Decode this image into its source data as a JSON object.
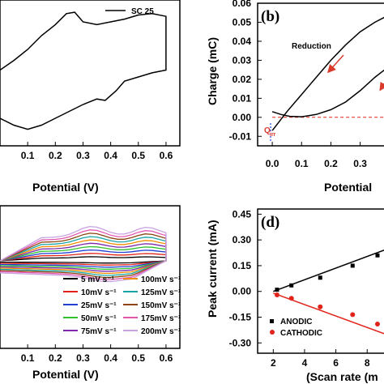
{
  "chart_data": [
    {
      "panel": "a",
      "type": "line",
      "xlabel": "Potential (V)",
      "xticks": [
        "0.1",
        "0.2",
        "0.3",
        "0.4",
        "0.5",
        "0.6"
      ],
      "xlim": [
        0.0,
        0.65
      ],
      "series": [
        {
          "name": "SC 25",
          "x": [
            0.0,
            0.05,
            0.1,
            0.15,
            0.2,
            0.24,
            0.27,
            0.3,
            0.35,
            0.4,
            0.45,
            0.5,
            0.55,
            0.6,
            0.6,
            0.55,
            0.5,
            0.45,
            0.42,
            0.38,
            0.35,
            0.3,
            0.25,
            0.2,
            0.15,
            0.1,
            0.05,
            0.0
          ],
          "y": [
            0.55,
            0.62,
            0.7,
            0.8,
            0.88,
            0.96,
            0.97,
            0.9,
            0.88,
            0.9,
            0.92,
            0.95,
            0.96,
            0.94,
            0.55,
            0.53,
            0.5,
            0.47,
            0.4,
            0.33,
            0.34,
            0.3,
            0.25,
            0.2,
            0.15,
            0.12,
            0.15,
            0.2
          ]
        }
      ]
    },
    {
      "panel": "b",
      "type": "line",
      "label": "(b)",
      "xlabel": "Potential",
      "ylabel": "Charge (mC)",
      "xticks": [
        "0.0",
        "0.1",
        "0.2",
        "0.3"
      ],
      "yticks": [
        "-0.01",
        "0.00",
        "0.01",
        "0.02",
        "0.03",
        "0.04",
        "0.05",
        "0.06"
      ],
      "xlim": [
        -0.05,
        0.42
      ],
      "ylim": [
        -0.015,
        0.06
      ],
      "annotation": "Reduction",
      "marker_text": "Q",
      "marker_sub": "irr",
      "series": [
        {
          "name": "reduction",
          "x": [
            0.0,
            0.05,
            0.1,
            0.15,
            0.2,
            0.25,
            0.3,
            0.35,
            0.4
          ],
          "y": [
            -0.007,
            0.003,
            0.012,
            0.021,
            0.03,
            0.038,
            0.045,
            0.05,
            0.054
          ]
        },
        {
          "name": "oxidation",
          "x": [
            0.0,
            0.03,
            0.06,
            0.1,
            0.15,
            0.2,
            0.25,
            0.3,
            0.35,
            0.4
          ],
          "y": [
            0.003,
            0.0015,
            0.0005,
            0.0003,
            0.0015,
            0.004,
            0.008,
            0.014,
            0.021,
            0.027
          ]
        },
        {
          "name": "baseline",
          "x": [
            0.0,
            0.42
          ],
          "y": [
            0.0,
            0.0
          ]
        }
      ]
    },
    {
      "panel": "c",
      "type": "line",
      "xlabel": "Potential (V)",
      "xticks": [
        "0.1",
        "0.2",
        "0.3",
        "0.4",
        "0.5",
        "0.6"
      ],
      "xlim": [
        0.0,
        0.65
      ],
      "legend_position": "bottom-right",
      "legend": [
        {
          "label": "5 mV s⁻¹",
          "color": "#000000"
        },
        {
          "label": "10mV s⁻¹",
          "color": "#e2231a"
        },
        {
          "label": "25mV s⁻¹",
          "color": "#1f3fd1"
        },
        {
          "label": "50mV s⁻¹",
          "color": "#2fc02f"
        },
        {
          "label": "75mV s⁻¹",
          "color": "#7a2aa8"
        },
        {
          "label": "100mV s⁻¹",
          "color": "#f08c00"
        },
        {
          "label": "125mV s⁻¹",
          "color": "#1aa5a5"
        },
        {
          "label": "150mV s⁻¹",
          "color": "#8b4513"
        },
        {
          "label": "175mV s⁻¹",
          "color": "#e455b0"
        },
        {
          "label": "200mV s⁻¹",
          "color": "#c8a2e0"
        }
      ],
      "scan_rates": [
        5,
        10,
        25,
        50,
        75,
        100,
        125,
        150,
        175,
        200
      ]
    },
    {
      "panel": "d",
      "type": "scatter",
      "label": "(d)",
      "xlabel": "(Scan rate (m",
      "ylabel": "Peak current (mA)",
      "xticks": [
        "2",
        "4",
        "6",
        "8"
      ],
      "yticks": [
        "-0.30",
        "-0.15",
        "0.00",
        "0.15",
        "0.30",
        "0.45"
      ],
      "xlim": [
        1.0,
        9.8
      ],
      "ylim": [
        -0.36,
        0.48
      ],
      "legend_position": "bottom-left",
      "series": [
        {
          "name": "ANODIC",
          "color": "#000000",
          "marker": "square",
          "x": [
            2.24,
            3.16,
            5.0,
            7.07,
            8.66
          ],
          "y": [
            0.01,
            0.035,
            0.08,
            0.15,
            0.21
          ]
        },
        {
          "name": "CATHODIC",
          "color": "#e2231a",
          "marker": "circle",
          "x": [
            2.24,
            3.16,
            5.0,
            7.07,
            8.66
          ],
          "y": [
            -0.02,
            -0.04,
            -0.09,
            -0.135,
            -0.19
          ]
        }
      ],
      "fits": [
        {
          "color": "#000000",
          "x": [
            2.0,
            9.8
          ],
          "y": [
            0.0,
            0.265
          ]
        },
        {
          "color": "#e2231a",
          "x": [
            2.0,
            9.8
          ],
          "y": [
            -0.01,
            -0.27
          ]
        }
      ]
    }
  ],
  "colors": {
    "arrow": "#d93a2b",
    "baseline": "#e2231a",
    "qmarker": "#1f3fd1"
  }
}
